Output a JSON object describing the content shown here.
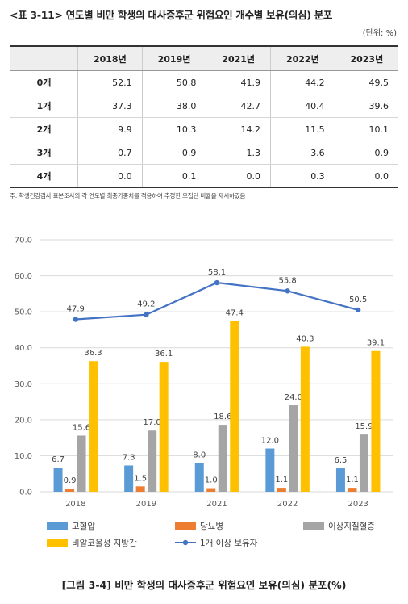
{
  "table": {
    "title": "<표 3-11> 연도별 비만 학생의 대사증후군 위험요인 개수별 보유(의심) 분포",
    "unit": "(단위: %)",
    "columns": [
      "",
      "2018년",
      "2019년",
      "2021년",
      "2022년",
      "2023년"
    ],
    "rows": [
      {
        "label": "0개",
        "values": [
          "52.1",
          "50.8",
          "41.9",
          "44.2",
          "49.5"
        ]
      },
      {
        "label": "1개",
        "values": [
          "37.3",
          "38.0",
          "42.7",
          "40.4",
          "39.6"
        ]
      },
      {
        "label": "2개",
        "values": [
          "9.9",
          "10.3",
          "14.2",
          "11.5",
          "10.1"
        ]
      },
      {
        "label": "3개",
        "values": [
          "0.7",
          "0.9",
          "1.3",
          "3.6",
          "0.9"
        ]
      },
      {
        "label": "4개",
        "values": [
          "0.0",
          "0.1",
          "0.0",
          "0.3",
          "0.0"
        ]
      }
    ],
    "note": "주: 학생건강검사 표본조사의 각 연도별 최종가중치를 적용하여 추정한 모집단 비율을 제시하였음"
  },
  "chart_data": {
    "type": "bar",
    "categories": [
      "2018",
      "2019",
      "2021",
      "2022",
      "2023"
    ],
    "ylim": [
      0,
      70
    ],
    "yticks": [
      "0.0",
      "10.0",
      "20.0",
      "30.0",
      "40.0",
      "50.0",
      "60.0",
      "70.0"
    ],
    "grid": true,
    "legend": "bottom",
    "series": [
      {
        "name": "고혈압",
        "kind": "bar",
        "color": "#5b9bd5",
        "values": [
          6.7,
          7.3,
          8.0,
          12.0,
          6.5
        ],
        "labels": [
          "6.7",
          "7.3",
          "8.0",
          "12.0",
          "6.5"
        ]
      },
      {
        "name": "당뇨병",
        "kind": "bar",
        "color": "#ed7d31",
        "values": [
          0.9,
          1.5,
          1.0,
          1.1,
          1.1
        ],
        "labels": [
          "0.9",
          "1.5",
          "1.0",
          "1.1",
          "1.1"
        ]
      },
      {
        "name": "이상지질혈증",
        "kind": "bar",
        "color": "#a5a5a5",
        "values": [
          15.6,
          17.0,
          18.6,
          24.0,
          15.9
        ],
        "labels": [
          "15.6",
          "17.0",
          "18.6",
          "24.0",
          "15.9"
        ]
      },
      {
        "name": "비알코올성 지방간",
        "kind": "bar",
        "color": "#ffc000",
        "values": [
          36.3,
          36.1,
          47.4,
          40.3,
          39.1
        ],
        "labels": [
          "36.3",
          "36.1",
          "47.4",
          "40.3",
          "39.1"
        ]
      },
      {
        "name": "1개 이상 보유자",
        "kind": "line",
        "color": "#4472c4",
        "values": [
          47.9,
          49.2,
          58.1,
          55.8,
          50.5
        ],
        "labels": [
          "47.9",
          "49.2",
          "58.1",
          "55.8",
          "50.5"
        ]
      }
    ]
  },
  "caption": "[그림 3-4] 비만 학생의 대사증후군 위험요인 보유(의심) 분포(%)"
}
